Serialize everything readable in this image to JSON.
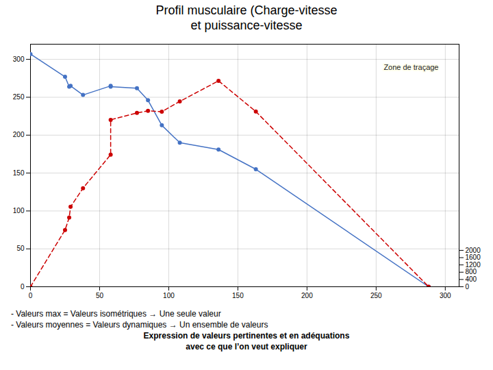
{
  "chart_data": {
    "type": "line",
    "title": "Profil musculaire (Charge-vitesse\net puissance-vitesse",
    "x": [
      0,
      25,
      28,
      29,
      38,
      58,
      58,
      77,
      85,
      95,
      108,
      136,
      163,
      288
    ],
    "series": [
      {
        "color": "#4472c4",
        "line_style": "solid",
        "marker": "o",
        "values": [
          307,
          277,
          264,
          265,
          253,
          265,
          264,
          262,
          246,
          213,
          190,
          181,
          155,
          0
        ]
      },
      {
        "color": "#cc0000",
        "line_style": "dashed",
        "marker": "o",
        "values": [
          0,
          74.85,
          91.2,
          105.45,
          130.05,
          174.3,
          220.2,
          229.35,
          232.05,
          231,
          244.5,
          271.65,
          231.15,
          0
        ]
      }
    ],
    "xlim": [
      0,
      310
    ],
    "xticks": [
      0,
      50,
      100,
      150,
      200,
      250,
      300
    ],
    "ylim": [
      0,
      320
    ],
    "yticks": [
      0,
      50,
      100,
      150,
      200,
      250,
      300
    ],
    "y2lim": [
      0,
      13333.333333333334
    ],
    "y2ticks": [
      0,
      400,
      800,
      1200,
      1600,
      2000
    ],
    "grid": true,
    "annotations": [
      "Zone de traçage",
      "- Valeurs max = Valeurs isométriques → Une seule valeur",
      "- Valeurs moyennes = Valeurs dynamiques → Un ensemble de valeurs",
      "Expression de valeurs pertinentes et en adéquations",
      "avec ce que l’on veut expliquer"
    ]
  }
}
